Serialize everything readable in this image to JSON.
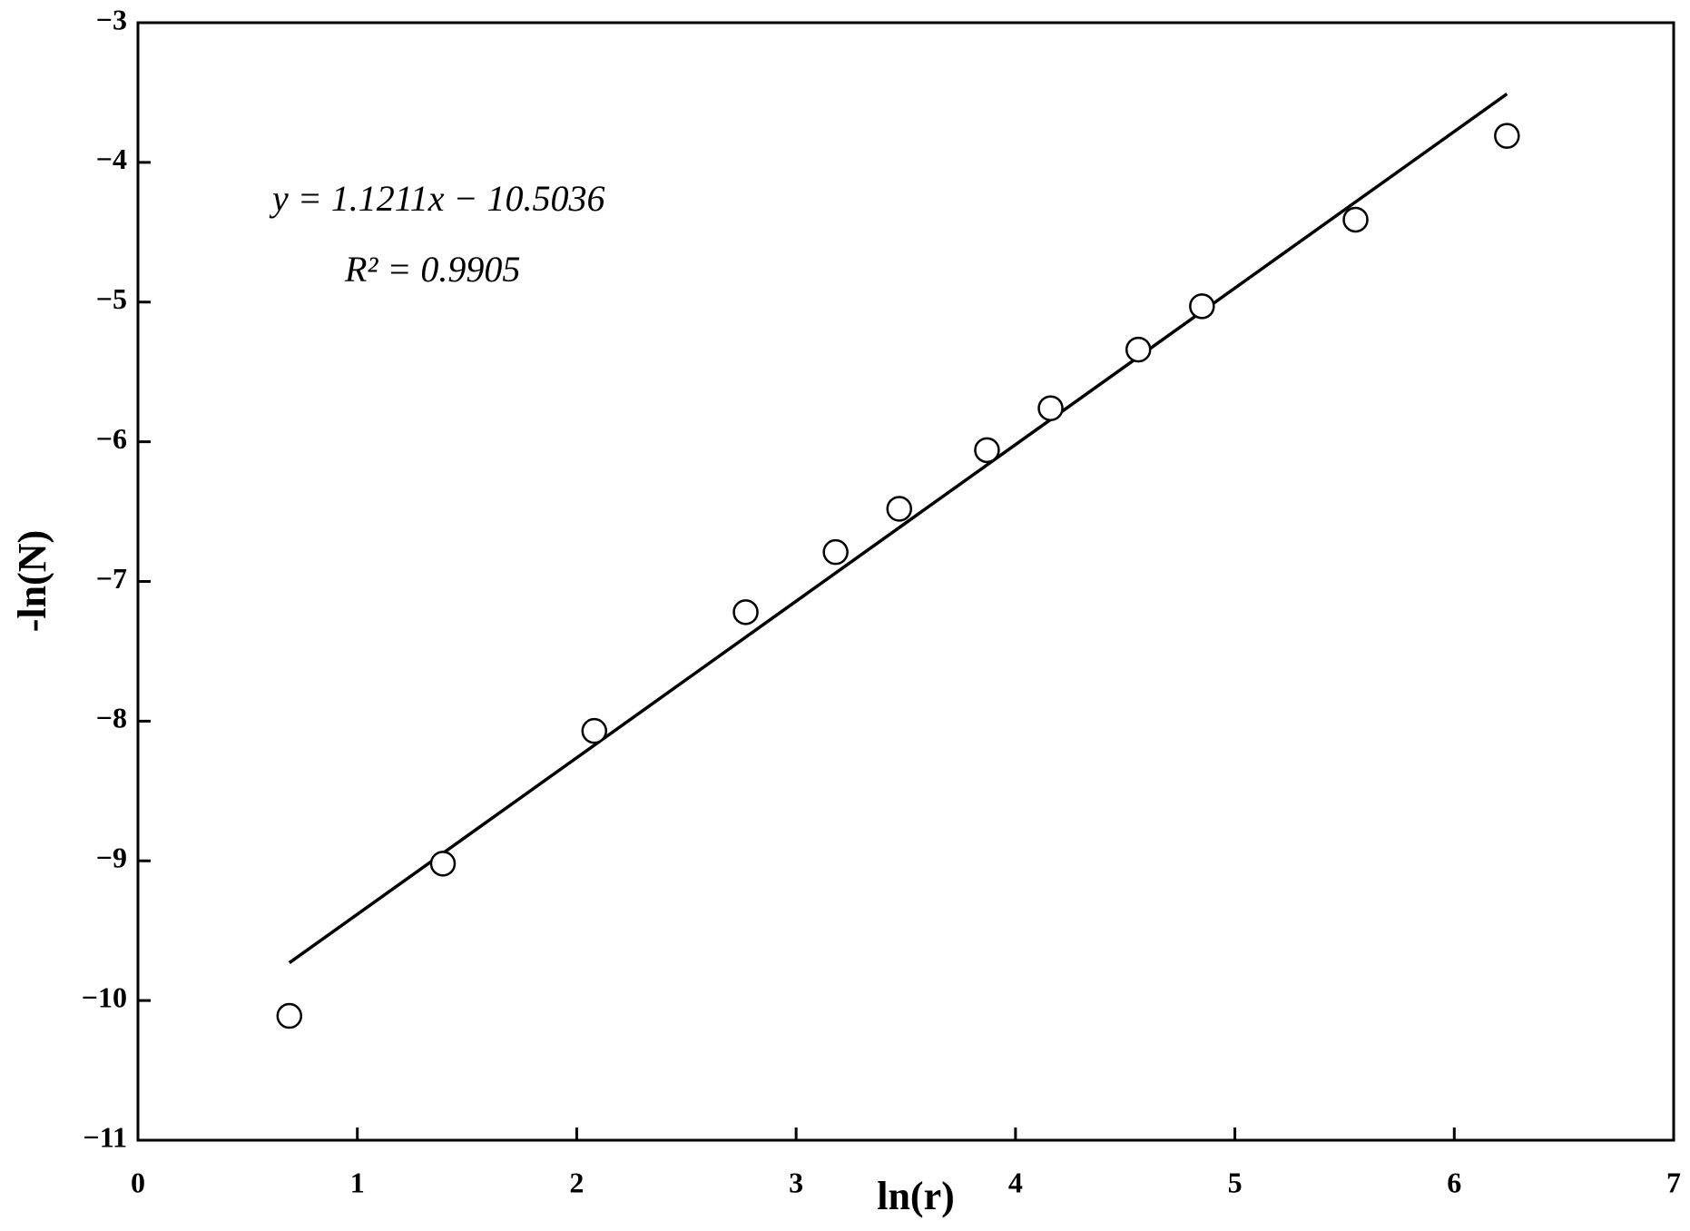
{
  "chart_data": {
    "type": "scatter",
    "xlabel": "ln(r)",
    "ylabel": "-ln(N)",
    "annotations": [
      "y = 1.1211x − 10.5036",
      "R² = 0.9905"
    ],
    "x": [
      0.69,
      1.39,
      2.08,
      2.77,
      3.18,
      3.47,
      3.87,
      4.16,
      4.56,
      4.85,
      5.55,
      6.24
    ],
    "values": [
      -10.11,
      -9.02,
      -8.07,
      -7.22,
      -6.79,
      -6.48,
      -6.06,
      -5.76,
      -5.34,
      -5.03,
      -4.41,
      -3.81
    ],
    "color": "#000000",
    "fit_line": {
      "x": [
        0.69,
        6.24
      ],
      "values": [
        -9.73,
        -3.51
      ]
    },
    "xlim": [
      0,
      7
    ],
    "xticks": [
      0,
      1,
      2,
      3,
      4,
      5,
      6,
      7
    ],
    "ylim": [
      -11,
      -3
    ],
    "yticks": [
      {
        "value": -11,
        "label": "−11"
      },
      {
        "value": -10,
        "label": "−10"
      },
      {
        "value": -9,
        "label": "−9"
      },
      {
        "value": -8,
        "label": "−8"
      },
      {
        "value": -7,
        "label": "−7"
      },
      {
        "value": -6,
        "label": "−6"
      },
      {
        "value": -5,
        "label": "−5"
      },
      {
        "value": -4,
        "label": "−4"
      },
      {
        "value": -3,
        "label": "−3"
      }
    ],
    "grid": false
  }
}
